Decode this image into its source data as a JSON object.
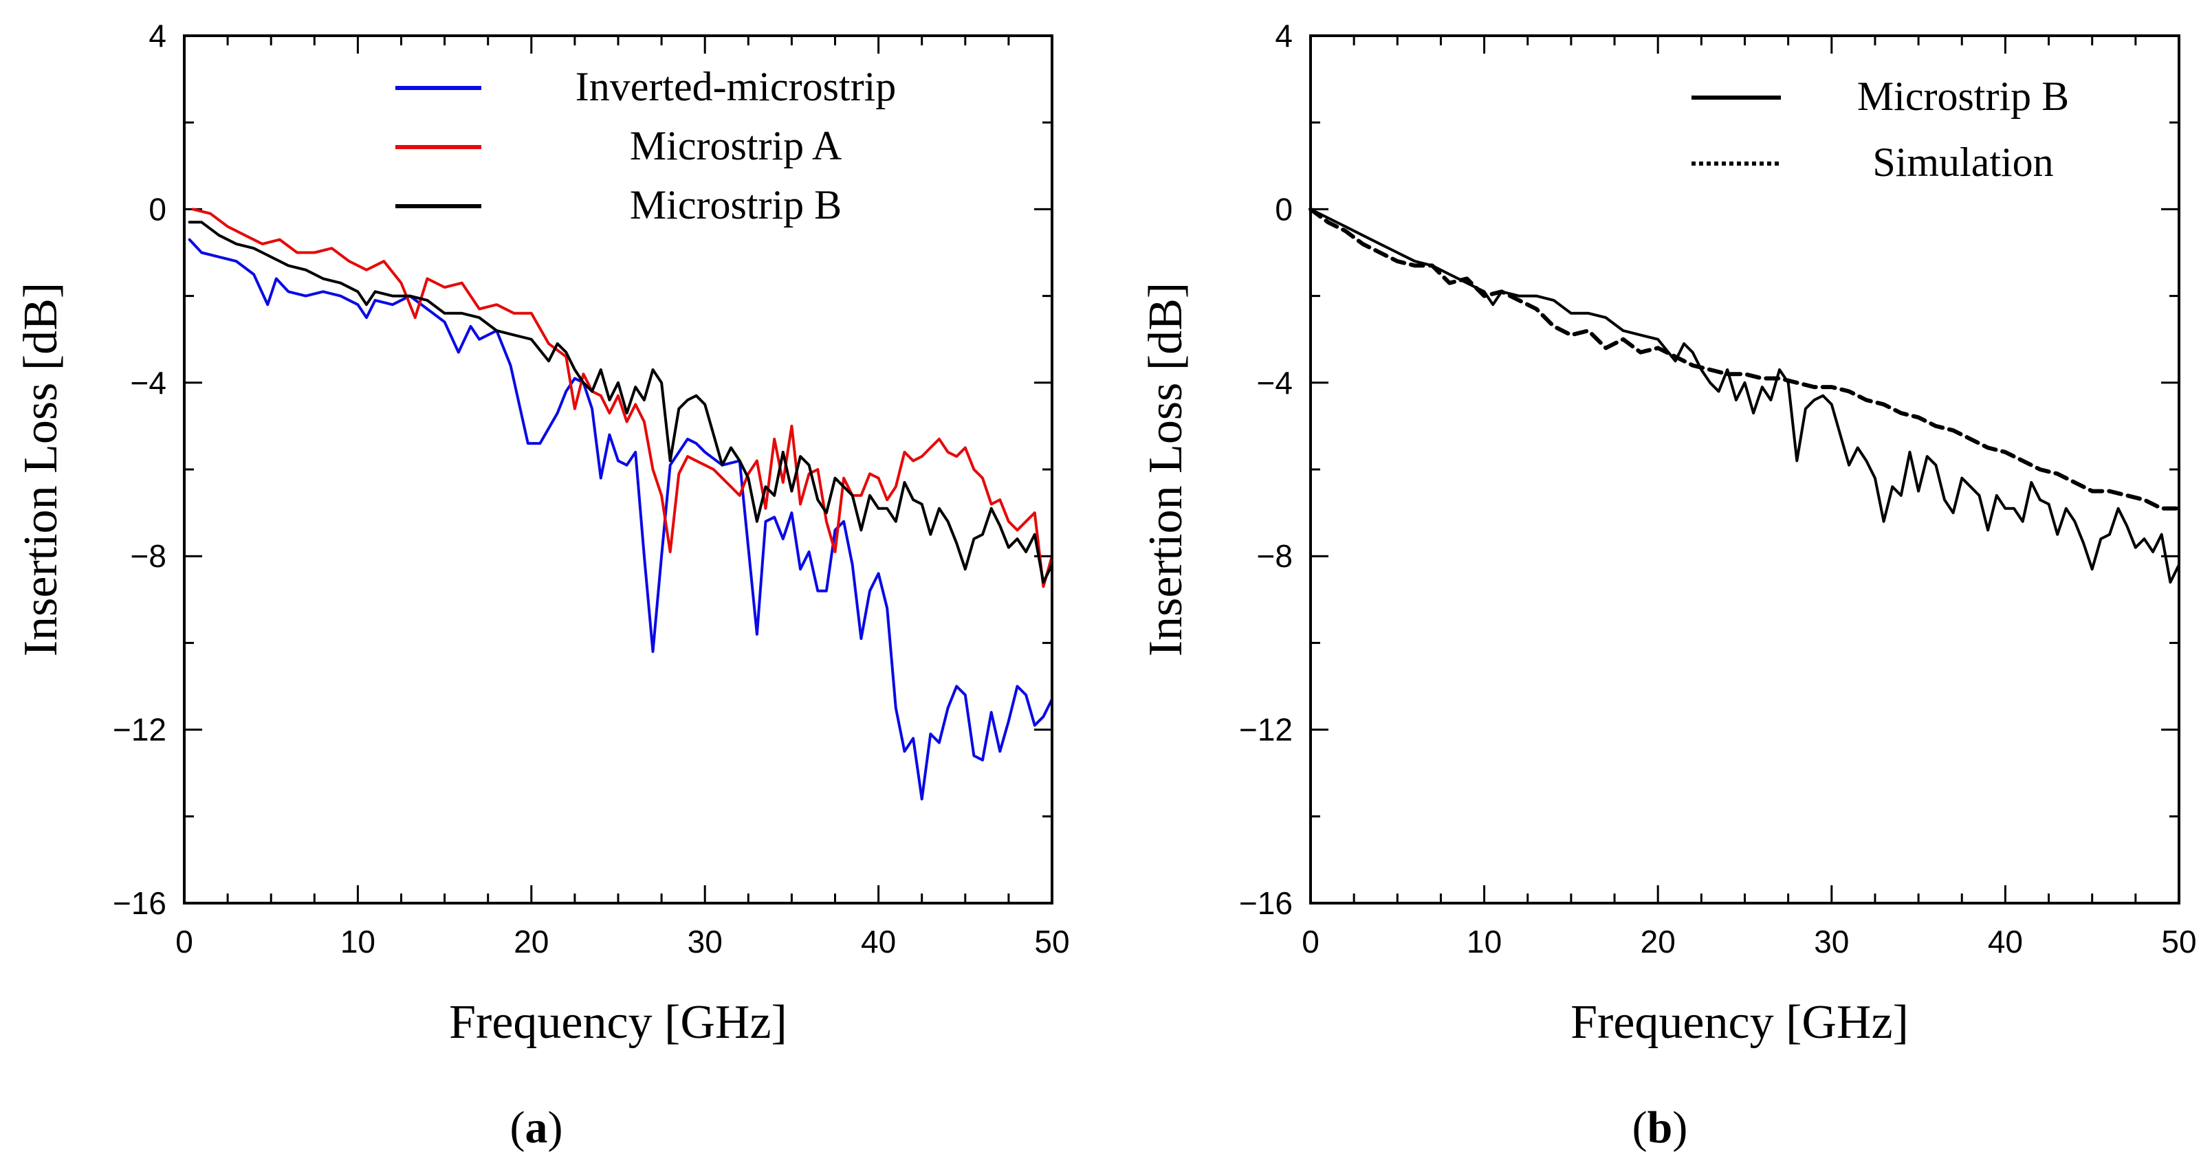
{
  "chart_data": [
    {
      "panel": "a",
      "type": "line",
      "xlabel": "Frequency  [GHz]",
      "ylabel": "Insertion Loss [dB]",
      "xlim": [
        0,
        50
      ],
      "ylim": [
        -16,
        4
      ],
      "xticks": [
        0,
        10,
        20,
        30,
        40,
        50
      ],
      "yticks": [
        4,
        0,
        -4,
        -8,
        -12,
        -16
      ],
      "xtick_labels": [
        "0",
        "10",
        "20",
        "30",
        "40",
        "50"
      ],
      "ytick_labels": [
        "4",
        "0",
        "−4",
        "−8",
        "−12",
        "−16"
      ],
      "legend_position": "top-right",
      "series": [
        {
          "name": "Inverted-microstrip",
          "color": "#0a0ae6",
          "style": "solid",
          "x": [
            0.3,
            1,
            2,
            3,
            4,
            4.8,
            5.3,
            6,
            7,
            8,
            9,
            10,
            10.5,
            11,
            12,
            13,
            14,
            15,
            15.8,
            16.5,
            17,
            18,
            18.8,
            19.8,
            20.5,
            21.5,
            22,
            22.5,
            23,
            23.5,
            24,
            24.5,
            25,
            25.5,
            26,
            26.5,
            27,
            27.5,
            28,
            28.5,
            29,
            29.5,
            30,
            31,
            32,
            33,
            33.5,
            34,
            34.5,
            35,
            35.5,
            36,
            36.5,
            37,
            37.5,
            38,
            38.5,
            39,
            39.5,
            40,
            40.5,
            41,
            41.5,
            42,
            42.5,
            43,
            43.5,
            44,
            44.5,
            45,
            45.5,
            46,
            46.5,
            47,
            47.5,
            48,
            48.5,
            49,
            49.5,
            50
          ],
          "values": [
            -0.7,
            -1.0,
            -1.1,
            -1.2,
            -1.5,
            -2.2,
            -1.6,
            -1.9,
            -2.0,
            -1.9,
            -2.0,
            -2.2,
            -2.5,
            -2.1,
            -2.2,
            -2.0,
            -2.3,
            -2.6,
            -3.3,
            -2.7,
            -3.0,
            -2.8,
            -3.6,
            -5.4,
            -5.4,
            -4.7,
            -4.2,
            -3.9,
            -4.0,
            -4.6,
            -6.2,
            -5.2,
            -5.8,
            -5.9,
            -5.6,
            -8.0,
            -10.2,
            -8.0,
            -5.9,
            -5.6,
            -5.3,
            -5.4,
            -5.6,
            -5.9,
            -5.8,
            -9.8,
            -7.2,
            -7.1,
            -7.6,
            -7.0,
            -8.3,
            -7.9,
            -8.8,
            -8.8,
            -7.4,
            -7.2,
            -8.2,
            -9.9,
            -8.8,
            -8.4,
            -9.2,
            -11.5,
            -12.5,
            -12.2,
            -13.6,
            -12.1,
            -12.3,
            -11.5,
            -11.0,
            -11.2,
            -12.6,
            -12.7,
            -11.6,
            -12.5,
            -11.8,
            -11.0,
            -11.2,
            -11.9,
            -11.7,
            -11.3
          ]
        },
        {
          "name": "Microstrip A",
          "color": "#e60a0a",
          "style": "solid",
          "x": [
            0.5,
            1.5,
            2.5,
            3.5,
            4.5,
            5.5,
            6.5,
            7.5,
            8.5,
            9.5,
            10.5,
            11.5,
            12.5,
            13.3,
            14,
            15,
            16,
            17,
            18,
            19,
            20,
            21,
            22,
            22.5,
            23,
            23.5,
            24,
            24.5,
            25,
            25.5,
            26,
            26.5,
            27,
            27.5,
            28,
            28.5,
            29,
            29.5,
            30,
            30.5,
            31,
            31.5,
            32,
            32.5,
            33,
            33.5,
            34,
            34.5,
            35,
            35.5,
            36,
            36.5,
            37,
            37.5,
            38,
            38.5,
            39,
            39.5,
            40,
            40.5,
            41,
            41.5,
            42,
            42.5,
            43,
            43.5,
            44,
            44.5,
            45,
            45.5,
            46,
            46.5,
            47,
            47.5,
            48,
            48.5,
            49,
            49.5,
            50
          ],
          "values": [
            0.0,
            -0.1,
            -0.4,
            -0.6,
            -0.8,
            -0.7,
            -1.0,
            -1.0,
            -0.9,
            -1.2,
            -1.4,
            -1.2,
            -1.7,
            -2.5,
            -1.6,
            -1.8,
            -1.7,
            -2.3,
            -2.2,
            -2.4,
            -2.4,
            -3.1,
            -3.4,
            -4.6,
            -3.8,
            -4.2,
            -4.3,
            -4.7,
            -4.3,
            -4.9,
            -4.5,
            -4.9,
            -6.0,
            -6.6,
            -7.9,
            -6.1,
            -5.7,
            -5.8,
            -5.9,
            -6.0,
            -6.2,
            -6.4,
            -6.6,
            -6.1,
            -5.8,
            -6.9,
            -5.3,
            -6.3,
            -5.0,
            -6.8,
            -6.1,
            -6.0,
            -7.2,
            -7.9,
            -6.2,
            -6.6,
            -6.6,
            -6.1,
            -6.2,
            -6.7,
            -6.4,
            -5.6,
            -5.8,
            -5.7,
            -5.5,
            -5.3,
            -5.6,
            -5.7,
            -5.5,
            -6.0,
            -6.2,
            -6.8,
            -6.7,
            -7.2,
            -7.4,
            -7.2,
            -7.0,
            -8.7,
            -8.0
          ]
        },
        {
          "name": "Microstrip B",
          "color": "#000000",
          "style": "solid",
          "x": [
            0.3,
            1,
            2,
            3,
            4,
            5,
            6,
            7,
            8,
            9,
            10,
            10.5,
            11,
            12,
            13,
            14,
            15,
            16,
            17,
            18,
            19,
            20,
            21,
            21.5,
            22,
            22.5,
            23,
            23.5,
            24,
            24.5,
            25,
            25.5,
            26,
            26.5,
            27,
            27.5,
            28,
            28.5,
            29,
            29.5,
            30,
            30.5,
            31,
            31.5,
            32,
            32.5,
            33,
            33.5,
            34,
            34.5,
            35,
            35.5,
            36,
            36.5,
            37,
            37.5,
            38,
            38.5,
            39,
            39.5,
            40,
            40.5,
            41,
            41.5,
            42,
            42.5,
            43,
            43.5,
            44,
            44.5,
            45,
            45.5,
            46,
            46.5,
            47,
            47.5,
            48,
            48.5,
            49,
            49.5,
            50
          ],
          "values": [
            -0.3,
            -0.3,
            -0.6,
            -0.8,
            -0.9,
            -1.1,
            -1.3,
            -1.4,
            -1.6,
            -1.7,
            -1.9,
            -2.2,
            -1.9,
            -2.0,
            -2.0,
            -2.1,
            -2.4,
            -2.4,
            -2.5,
            -2.8,
            -2.9,
            -3.0,
            -3.5,
            -3.1,
            -3.3,
            -3.7,
            -4.0,
            -4.2,
            -3.7,
            -4.4,
            -4.0,
            -4.7,
            -4.1,
            -4.4,
            -3.7,
            -4.0,
            -5.8,
            -4.6,
            -4.4,
            -4.3,
            -4.5,
            -5.2,
            -5.9,
            -5.5,
            -5.8,
            -6.2,
            -7.2,
            -6.4,
            -6.6,
            -5.6,
            -6.5,
            -5.7,
            -5.9,
            -6.7,
            -7.0,
            -6.2,
            -6.4,
            -6.6,
            -7.4,
            -6.6,
            -6.9,
            -6.9,
            -7.2,
            -6.3,
            -6.7,
            -6.8,
            -7.5,
            -6.9,
            -7.2,
            -7.7,
            -8.3,
            -7.6,
            -7.5,
            -6.9,
            -7.3,
            -7.8,
            -7.6,
            -7.9,
            -7.5,
            -8.6,
            -8.2
          ]
        }
      ],
      "panel_label": "(a)"
    },
    {
      "panel": "b",
      "type": "line",
      "xlabel": "Frequency  [GHz]",
      "ylabel": "Insertion Loss [dB]",
      "xlim": [
        0,
        50
      ],
      "ylim": [
        -16,
        4
      ],
      "xticks": [
        0,
        10,
        20,
        30,
        40,
        50
      ],
      "yticks": [
        4,
        0,
        -4,
        -8,
        -12,
        -16
      ],
      "xtick_labels": [
        "0",
        "10",
        "20",
        "30",
        "40",
        "50"
      ],
      "ytick_labels": [
        "4",
        "0",
        "−4",
        "−8",
        "−12",
        "−16"
      ],
      "legend_position": "top-right",
      "series": [
        {
          "name": "Microstrip B",
          "color": "#000000",
          "style": "solid",
          "x": [
            0,
            1,
            2,
            3,
            4,
            5,
            6,
            7,
            8,
            9,
            10,
            10.5,
            11,
            12,
            13,
            14,
            15,
            16,
            17,
            18,
            19,
            20,
            21,
            21.5,
            22,
            22.5,
            23,
            23.5,
            24,
            24.5,
            25,
            25.5,
            26,
            26.5,
            27,
            27.5,
            28,
            28.5,
            29,
            29.5,
            30,
            30.5,
            31,
            31.5,
            32,
            32.5,
            33,
            33.5,
            34,
            34.5,
            35,
            35.5,
            36,
            36.5,
            37,
            37.5,
            38,
            38.5,
            39,
            39.5,
            40,
            40.5,
            41,
            41.5,
            42,
            42.5,
            43,
            43.5,
            44,
            44.5,
            45,
            45.5,
            46,
            46.5,
            47,
            47.5,
            48,
            48.5,
            49,
            49.5,
            50
          ],
          "values": [
            0.0,
            -0.2,
            -0.4,
            -0.6,
            -0.8,
            -1.0,
            -1.2,
            -1.3,
            -1.5,
            -1.7,
            -1.9,
            -2.2,
            -1.9,
            -2.0,
            -2.0,
            -2.1,
            -2.4,
            -2.4,
            -2.5,
            -2.8,
            -2.9,
            -3.0,
            -3.5,
            -3.1,
            -3.3,
            -3.7,
            -4.0,
            -4.2,
            -3.7,
            -4.4,
            -4.0,
            -4.7,
            -4.1,
            -4.4,
            -3.7,
            -4.0,
            -5.8,
            -4.6,
            -4.4,
            -4.3,
            -4.5,
            -5.2,
            -5.9,
            -5.5,
            -5.8,
            -6.2,
            -7.2,
            -6.4,
            -6.6,
            -5.6,
            -6.5,
            -5.7,
            -5.9,
            -6.7,
            -7.0,
            -6.2,
            -6.4,
            -6.6,
            -7.4,
            -6.6,
            -6.9,
            -6.9,
            -7.2,
            -6.3,
            -6.7,
            -6.8,
            -7.5,
            -6.9,
            -7.2,
            -7.7,
            -8.3,
            -7.6,
            -7.5,
            -6.9,
            -7.3,
            -7.8,
            -7.6,
            -7.9,
            -7.5,
            -8.6,
            -8.2
          ]
        },
        {
          "name": "Simulation",
          "color": "#000000",
          "style": "dashed",
          "x": [
            0,
            1,
            2,
            3,
            4,
            5,
            6,
            7,
            8,
            9,
            10,
            11,
            12,
            13,
            14,
            15,
            16,
            17,
            18,
            19,
            20,
            21,
            22,
            23,
            24,
            25,
            26,
            27,
            28,
            29,
            30,
            31,
            32,
            33,
            34,
            35,
            36,
            37,
            38,
            39,
            40,
            41,
            42,
            43,
            44,
            45,
            46,
            47,
            48,
            49,
            50
          ],
          "values": [
            0.0,
            -0.3,
            -0.5,
            -0.8,
            -1.0,
            -1.2,
            -1.3,
            -1.3,
            -1.7,
            -1.6,
            -2.0,
            -1.9,
            -2.1,
            -2.3,
            -2.7,
            -2.9,
            -2.8,
            -3.2,
            -3.0,
            -3.3,
            -3.2,
            -3.4,
            -3.6,
            -3.7,
            -3.8,
            -3.8,
            -3.9,
            -3.9,
            -4.0,
            -4.1,
            -4.1,
            -4.2,
            -4.4,
            -4.5,
            -4.7,
            -4.8,
            -5.0,
            -5.1,
            -5.3,
            -5.5,
            -5.6,
            -5.8,
            -6.0,
            -6.1,
            -6.3,
            -6.5,
            -6.5,
            -6.6,
            -6.7,
            -6.9,
            -6.9
          ]
        }
      ],
      "panel_label": "(b)"
    }
  ]
}
